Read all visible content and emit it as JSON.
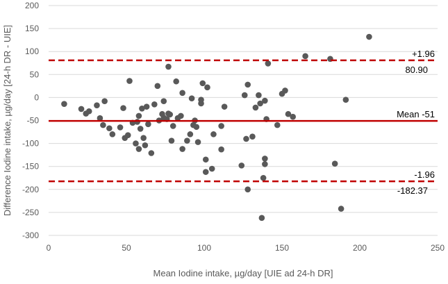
{
  "chart_data": {
    "type": "scatter",
    "title": "",
    "xlabel": "Mean Iodine intake, µg/day [UIE ad 24-h DR]",
    "ylabel": "Difference Iodine intake, µg/day [24-h DR - UIE]",
    "xlim": [
      0,
      250
    ],
    "ylim": [
      -300,
      200
    ],
    "x_ticks": [
      "0",
      "50",
      "100",
      "150",
      "200",
      "250"
    ],
    "y_ticks": [
      "200",
      "150",
      "100",
      "50",
      "0",
      "-50",
      "-100",
      "-150",
      "-200",
      "-250",
      "-300"
    ],
    "grid": "horizontal",
    "colors": {
      "points": "#595959",
      "lines": "#c00000",
      "grid": "#d9d9d9",
      "text": "#595959"
    },
    "reference_lines": [
      {
        "y": 80.9,
        "style": "dashed",
        "label_top": "+1.96",
        "label_bottom": "80.90"
      },
      {
        "y": -51,
        "style": "solid",
        "label_top": "Mean -51",
        "label_bottom": ""
      },
      {
        "y": -182.37,
        "style": "dashed",
        "label_top": "-1.96",
        "label_bottom": "-182.37"
      }
    ],
    "points": [
      [
        10,
        -14
      ],
      [
        21,
        -25
      ],
      [
        24,
        -35
      ],
      [
        26,
        -30
      ],
      [
        31,
        -17
      ],
      [
        33,
        -45
      ],
      [
        35,
        -60
      ],
      [
        36,
        -8
      ],
      [
        39,
        -67
      ],
      [
        41,
        -80
      ],
      [
        46,
        -65
      ],
      [
        48,
        -23
      ],
      [
        49,
        -88
      ],
      [
        51,
        -82
      ],
      [
        52,
        36
      ],
      [
        54,
        -55
      ],
      [
        56,
        -100
      ],
      [
        57,
        -53
      ],
      [
        58,
        -40
      ],
      [
        58,
        -112
      ],
      [
        59,
        -68
      ],
      [
        60,
        -24
      ],
      [
        61,
        -88
      ],
      [
        62,
        -104
      ],
      [
        63,
        -20
      ],
      [
        64,
        -58
      ],
      [
        66,
        -121
      ],
      [
        68,
        -15
      ],
      [
        70,
        25
      ],
      [
        71,
        -50
      ],
      [
        73,
        -36
      ],
      [
        74,
        -44
      ],
      [
        74,
        -8
      ],
      [
        76,
        -47
      ],
      [
        77,
        -35
      ],
      [
        78,
        -37
      ],
      [
        77,
        67
      ],
      [
        79,
        -94
      ],
      [
        80,
        -62
      ],
      [
        82,
        35
      ],
      [
        83,
        -45
      ],
      [
        85,
        -40
      ],
      [
        86,
        -112
      ],
      [
        86,
        10
      ],
      [
        89,
        -94
      ],
      [
        91,
        -80
      ],
      [
        92,
        -2
      ],
      [
        93,
        -60
      ],
      [
        94,
        -50
      ],
      [
        95,
        -64
      ],
      [
        96,
        -97
      ],
      [
        98,
        -13
      ],
      [
        98,
        -5
      ],
      [
        99,
        31
      ],
      [
        101,
        -162
      ],
      [
        101,
        -135
      ],
      [
        102,
        22
      ],
      [
        105,
        -155
      ],
      [
        106,
        -80
      ],
      [
        111,
        -113
      ],
      [
        111,
        -62
      ],
      [
        113,
        -20
      ],
      [
        124,
        -148
      ],
      [
        126,
        5
      ],
      [
        127,
        -90
      ],
      [
        128,
        -200
      ],
      [
        128,
        28
      ],
      [
        131,
        -85
      ],
      [
        133,
        -22
      ],
      [
        135,
        5
      ],
      [
        136,
        -13
      ],
      [
        137,
        -262
      ],
      [
        138,
        -175
      ],
      [
        139,
        -133
      ],
      [
        139,
        -145
      ],
      [
        139,
        -7
      ],
      [
        140,
        -47
      ],
      [
        141,
        74
      ],
      [
        147,
        -60
      ],
      [
        150,
        8
      ],
      [
        152,
        15
      ],
      [
        154,
        -36
      ],
      [
        157,
        -42
      ],
      [
        165,
        90
      ],
      [
        181,
        84
      ],
      [
        184,
        -144
      ],
      [
        188,
        -242
      ],
      [
        191,
        -5
      ],
      [
        206,
        132
      ]
    ]
  }
}
